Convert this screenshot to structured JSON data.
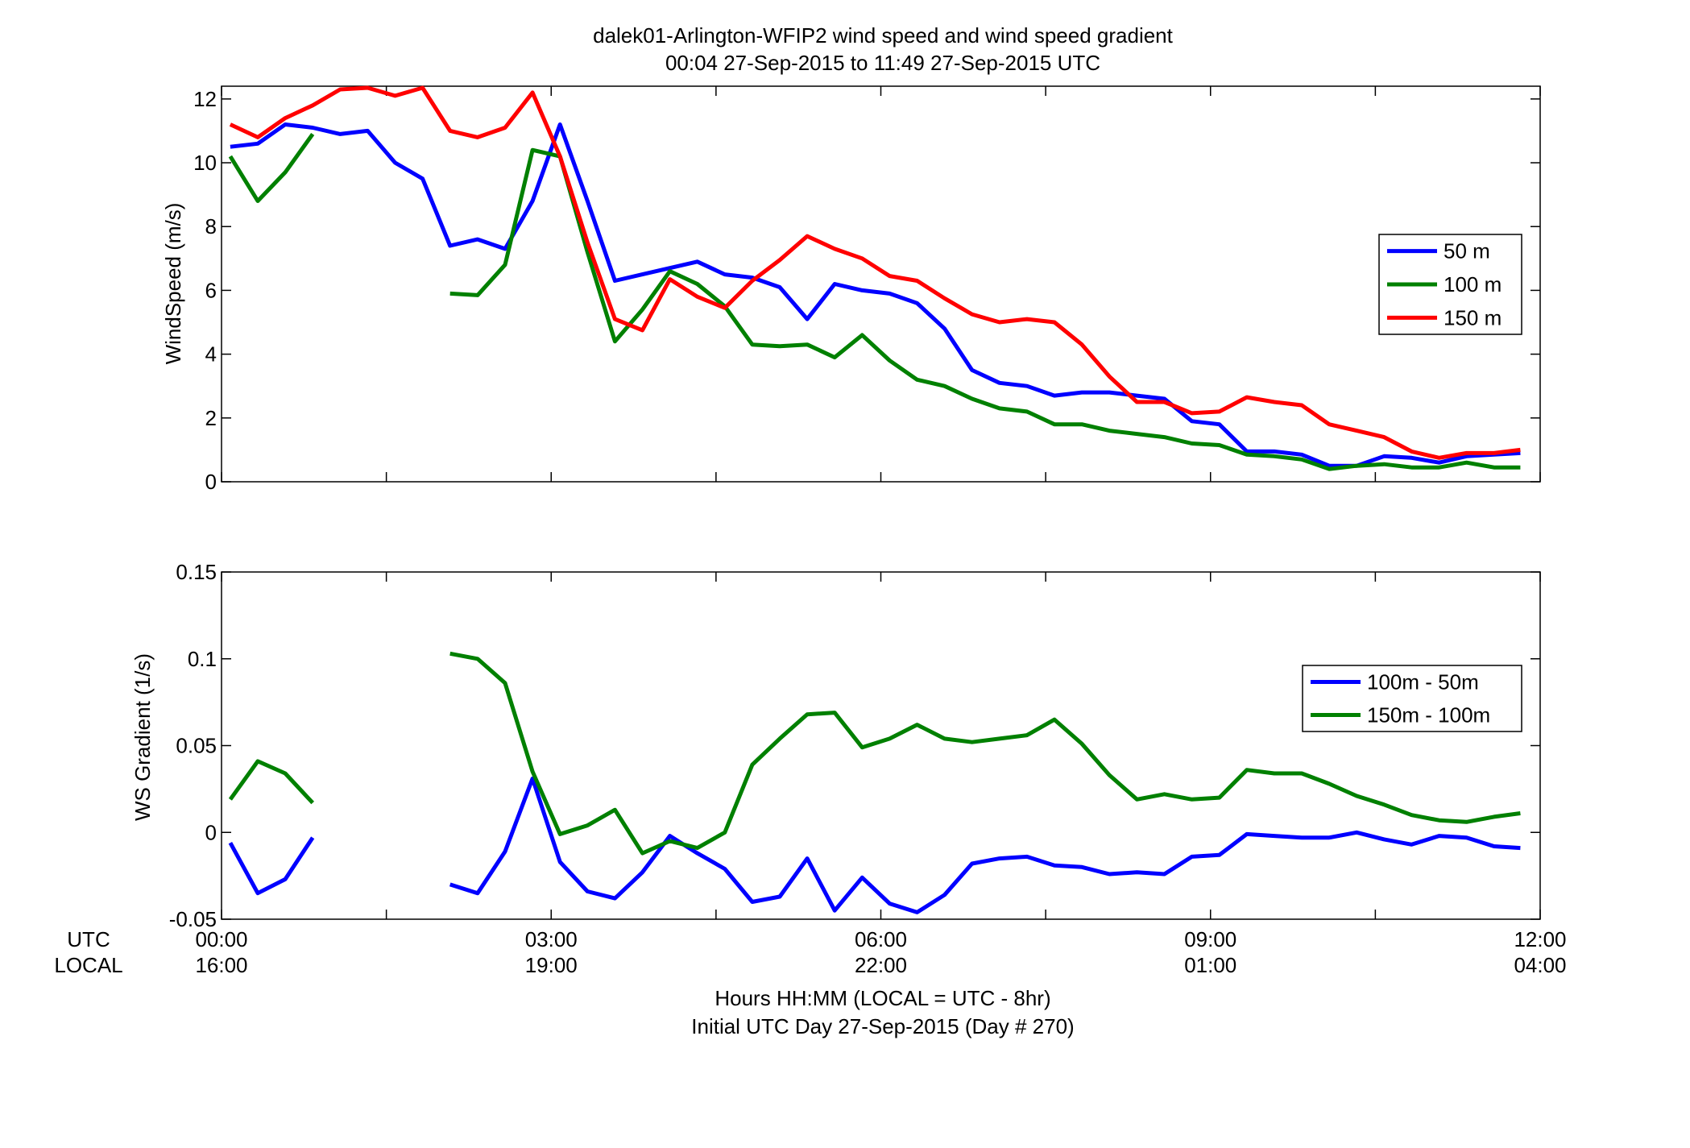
{
  "chart_data": [
    {
      "type": "line",
      "title": "dalek01-Arlington-WFIP2  wind speed and wind speed gradient",
      "subtitle": "00:04 27-Sep-2015 to 11:49 27-Sep-2015  UTC",
      "ylabel": "WindSpeed (m/s)",
      "xlim": [
        0,
        12
      ],
      "ylim": [
        0,
        12.4
      ],
      "yticks": [
        "0",
        "2",
        "4",
        "6",
        "8",
        "10",
        "12"
      ],
      "ytick_values": [
        0,
        2,
        4,
        6,
        8,
        10,
        12
      ],
      "legend_position": "right",
      "series": [
        {
          "name": "50 m",
          "color": "#0000ff",
          "x": [
            0.08,
            0.33,
            0.58,
            0.83,
            1.08,
            1.33,
            1.58,
            1.83,
            2.08,
            2.33,
            2.58,
            2.83,
            3.08,
            3.33,
            3.58,
            3.83,
            4.08,
            4.33,
            4.58,
            4.83,
            5.08,
            5.33,
            5.58,
            5.83,
            6.08,
            6.33,
            6.58,
            6.83,
            7.08,
            7.33,
            7.58,
            7.83,
            8.08,
            8.33,
            8.58,
            8.83,
            9.08,
            9.33,
            9.58,
            9.83,
            10.08,
            10.33,
            10.58,
            10.83,
            11.08,
            11.33,
            11.58,
            11.82
          ],
          "values": [
            10.5,
            10.6,
            11.2,
            11.1,
            10.9,
            11.0,
            10.0,
            9.5,
            7.4,
            7.6,
            7.3,
            8.8,
            11.2,
            8.8,
            6.3,
            6.5,
            6.7,
            6.9,
            6.5,
            6.4,
            6.1,
            5.1,
            6.2,
            6.0,
            5.9,
            5.6,
            4.8,
            3.5,
            3.1,
            3.0,
            2.7,
            2.8,
            2.8,
            2.7,
            2.6,
            1.9,
            1.8,
            0.95,
            0.95,
            0.85,
            0.5,
            0.5,
            0.8,
            0.75,
            0.6,
            0.8,
            0.85,
            0.9
          ]
        },
        {
          "name": "100 m",
          "color": "#008000",
          "x": [
            0.08,
            0.33,
            0.58,
            0.83,
            null,
            2.08,
            2.33,
            2.58,
            2.83,
            3.08,
            3.33,
            3.58,
            3.83,
            4.08,
            4.33,
            4.58,
            4.83,
            5.08,
            5.33,
            5.58,
            5.83,
            6.08,
            6.33,
            6.58,
            6.83,
            7.08,
            7.33,
            7.58,
            7.83,
            8.08,
            8.33,
            8.58,
            8.83,
            9.08,
            9.33,
            9.58,
            9.83,
            10.08,
            10.33,
            10.58,
            10.83,
            11.08,
            11.33,
            11.58,
            11.82
          ],
          "values": [
            10.2,
            8.8,
            9.7,
            10.9,
            null,
            5.9,
            5.85,
            6.8,
            10.4,
            10.2,
            7.2,
            4.4,
            5.4,
            6.6,
            6.2,
            5.5,
            4.3,
            4.25,
            4.3,
            3.9,
            4.6,
            3.8,
            3.2,
            3.0,
            2.6,
            2.3,
            2.2,
            1.8,
            1.8,
            1.6,
            1.5,
            1.4,
            1.2,
            1.15,
            0.85,
            0.8,
            0.7,
            0.4,
            0.5,
            0.55,
            0.45,
            0.45,
            0.6,
            0.45,
            0.45
          ]
        },
        {
          "name": "150 m",
          "color": "#ff0000",
          "x": [
            0.08,
            0.33,
            0.58,
            0.83,
            1.08,
            1.33,
            1.58,
            1.83,
            2.08,
            2.33,
            2.58,
            2.83,
            3.08,
            3.33,
            3.58,
            3.83,
            4.08,
            4.33,
            4.58,
            4.83,
            5.08,
            5.33,
            5.58,
            5.83,
            6.08,
            6.33,
            6.58,
            6.83,
            7.08,
            7.33,
            7.58,
            7.83,
            8.08,
            8.33,
            8.58,
            8.83,
            9.08,
            9.33,
            9.58,
            9.83,
            10.08,
            10.33,
            10.58,
            10.83,
            11.08,
            11.33,
            11.58,
            11.82
          ],
          "values": [
            11.2,
            10.8,
            11.4,
            11.8,
            12.3,
            12.35,
            12.1,
            12.35,
            11.0,
            10.8,
            11.1,
            12.2,
            10.2,
            7.5,
            5.1,
            4.75,
            6.35,
            5.8,
            5.45,
            6.3,
            6.95,
            7.7,
            7.3,
            7.0,
            6.45,
            6.3,
            5.75,
            5.25,
            5.0,
            5.1,
            5.0,
            4.3,
            3.3,
            2.5,
            2.5,
            2.15,
            2.2,
            2.65,
            2.5,
            2.4,
            1.8,
            1.6,
            1.4,
            0.95,
            0.75,
            0.9,
            0.9,
            1.0
          ]
        }
      ]
    },
    {
      "type": "line",
      "ylabel": "WS Gradient (1/s)",
      "xlabel": "Hours HH:MM  (LOCAL = UTC - 8hr)",
      "xlabel2": "Initial UTC Day 27-Sep-2015 (Day # 270)",
      "xlim": [
        0,
        12
      ],
      "ylim": [
        -0.05,
        0.15
      ],
      "yticks": [
        "-0.05",
        "0",
        "0.05",
        "0.1",
        "0.15"
      ],
      "ytick_values": [
        -0.05,
        0,
        0.05,
        0.1,
        0.15
      ],
      "x_row_labels": [
        "UTC",
        "LOCAL"
      ],
      "xticks_utc": [
        "00:00",
        "03:00",
        "06:00",
        "09:00",
        "12:00"
      ],
      "xticks_local": [
        "16:00",
        "19:00",
        "22:00",
        "01:00",
        "04:00"
      ],
      "xtick_values": [
        0,
        3,
        6,
        9,
        12
      ],
      "legend_position": "right",
      "series": [
        {
          "name": "100m - 50m",
          "color": "#0000ff",
          "x": [
            0.08,
            0.33,
            0.58,
            0.83,
            null,
            2.08,
            2.33,
            2.58,
            2.83,
            3.08,
            3.33,
            3.58,
            3.83,
            4.08,
            4.33,
            4.58,
            4.83,
            5.08,
            5.33,
            5.58,
            5.83,
            6.08,
            6.33,
            6.58,
            6.83,
            7.08,
            7.33,
            7.58,
            7.83,
            8.08,
            8.33,
            8.58,
            8.83,
            9.08,
            9.33,
            9.58,
            9.83,
            10.08,
            10.33,
            10.58,
            10.83,
            11.08,
            11.33,
            11.58,
            11.82
          ],
          "values": [
            -0.006,
            -0.035,
            -0.027,
            -0.003,
            null,
            -0.03,
            -0.035,
            -0.011,
            0.031,
            -0.017,
            -0.034,
            -0.038,
            -0.023,
            -0.002,
            -0.012,
            -0.021,
            -0.04,
            -0.037,
            -0.015,
            -0.045,
            -0.026,
            -0.041,
            -0.046,
            -0.036,
            -0.018,
            -0.015,
            -0.014,
            -0.019,
            -0.02,
            -0.024,
            -0.023,
            -0.024,
            -0.014,
            -0.013,
            -0.001,
            -0.002,
            -0.003,
            -0.003,
            0.0,
            -0.004,
            -0.007,
            -0.002,
            -0.003,
            -0.008,
            -0.009
          ]
        },
        {
          "name": "150m - 100m",
          "color": "#008000",
          "x": [
            0.08,
            0.33,
            0.58,
            0.83,
            null,
            2.08,
            2.33,
            2.58,
            2.83,
            3.08,
            3.33,
            3.58,
            3.83,
            4.08,
            4.33,
            4.58,
            4.83,
            5.08,
            5.33,
            5.58,
            5.83,
            6.08,
            6.33,
            6.58,
            6.83,
            7.08,
            7.33,
            7.58,
            7.83,
            8.08,
            8.33,
            8.58,
            8.83,
            9.08,
            9.33,
            9.58,
            9.83,
            10.08,
            10.33,
            10.58,
            10.83,
            11.08,
            11.33,
            11.58,
            11.82
          ],
          "values": [
            0.019,
            0.041,
            0.034,
            0.017,
            null,
            0.103,
            0.1,
            0.086,
            0.035,
            -0.001,
            0.004,
            0.013,
            -0.012,
            -0.005,
            -0.009,
            0.0,
            0.039,
            0.054,
            0.068,
            0.069,
            0.049,
            0.054,
            0.062,
            0.054,
            0.052,
            0.054,
            0.056,
            0.065,
            0.051,
            0.033,
            0.019,
            0.022,
            0.019,
            0.02,
            0.036,
            0.034,
            0.034,
            0.028,
            0.021,
            0.016,
            0.01,
            0.007,
            0.006,
            0.009,
            0.011
          ]
        }
      ]
    }
  ]
}
